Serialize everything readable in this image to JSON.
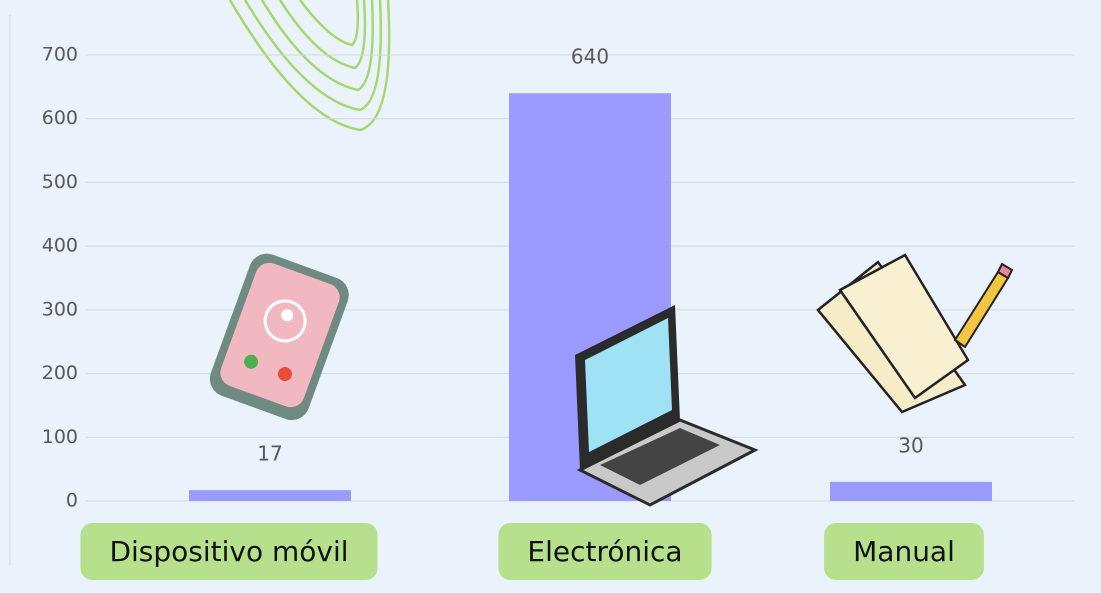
{
  "chart_data": {
    "type": "bar",
    "categories": [
      "Dispositivo móvil",
      "Electrónica",
      "Manual"
    ],
    "values": [
      17,
      640,
      30
    ],
    "color": "#9b9bff",
    "ylim": [
      0,
      700
    ],
    "yticks": [
      0,
      100,
      200,
      300,
      400,
      500,
      600,
      700
    ],
    "grid": true
  }
}
